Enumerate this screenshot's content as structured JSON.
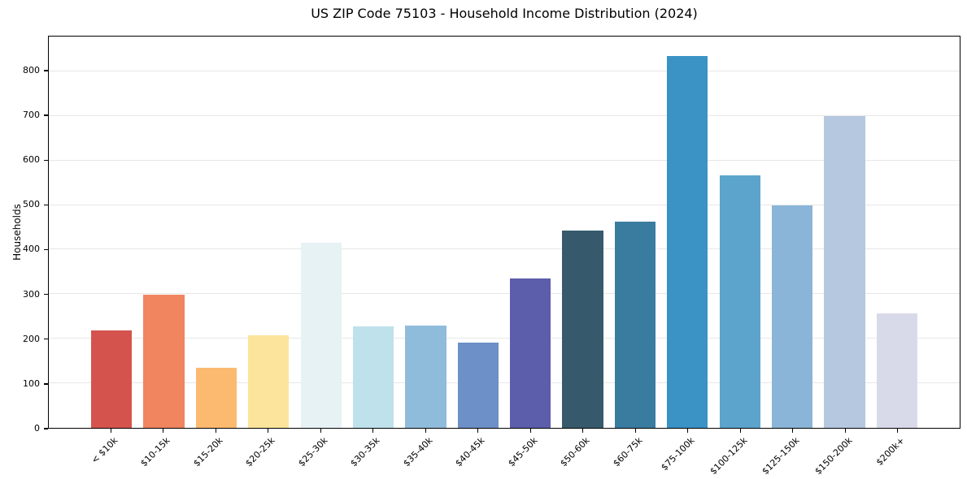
{
  "chart_data": {
    "type": "bar",
    "title": "US ZIP Code 75103 - Household Income Distribution (2024)",
    "xlabel": "",
    "ylabel": "Households",
    "ylim": [
      0,
      878
    ],
    "yticks": [
      0,
      100,
      200,
      300,
      400,
      500,
      600,
      700,
      800
    ],
    "grid": "horizontal-only",
    "legend": "none",
    "categories": [
      "< $10k",
      "$10-15k",
      "$15-20k",
      "$20-25k",
      "$25-30k",
      "$30-35k",
      "$35-40k",
      "$40-45k",
      "$45-50k",
      "$50-60k",
      "$60-75k",
      "$75-100k",
      "$100-125k",
      "$125-150k",
      "$150-200k",
      "$200k+"
    ],
    "values": [
      218,
      299,
      134,
      208,
      416,
      228,
      230,
      191,
      335,
      442,
      463,
      834,
      567,
      500,
      699,
      257
    ],
    "bar_colors": [
      "#d5534d",
      "#f0855f",
      "#fbba70",
      "#fce49c",
      "#e7f2f4",
      "#bfe1ec",
      "#90bcdc",
      "#6c90c7",
      "#5c5dab",
      "#365a6c",
      "#3a7ca0",
      "#3a93c4",
      "#5ca4cc",
      "#8ab5d8",
      "#b5c8e0",
      "#d9dae9"
    ]
  },
  "colors": {
    "background": "#ffffff",
    "axis": "#000000",
    "grid": "#e7e7e7",
    "text": "#000000"
  }
}
